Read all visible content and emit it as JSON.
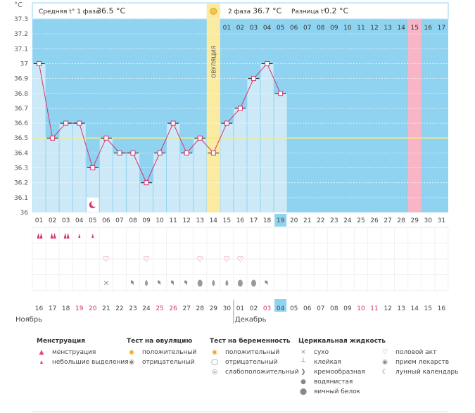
{
  "header": {
    "unit": "°C",
    "phase1_label": "Средняя t° 1 фаза",
    "phase1_value": "36.5 °C",
    "phase2_label": "2 фаза",
    "phase2_value": "36.7 °C",
    "diff_label": "Разница t°",
    "diff_value": "0.2 °C",
    "ovulation_label": "ОВУЛЯЦИЯ"
  },
  "chart_data": {
    "type": "line",
    "ylim": [
      36,
      37.3
    ],
    "yticks": [
      "37.3",
      "37.2",
      "37.1",
      "37",
      "36.9",
      "36.8",
      "36.7",
      "36.6",
      "36.5",
      "36.4",
      "36.3",
      "36.2",
      "36.1",
      "36"
    ],
    "cycle_days": [
      "01",
      "02",
      "03",
      "04",
      "05",
      "06",
      "07",
      "08",
      "09",
      "10",
      "11",
      "12",
      "13",
      "14",
      "15",
      "16",
      "17",
      "18",
      "19",
      "20",
      "21",
      "22",
      "23",
      "24",
      "25",
      "26",
      "27",
      "28",
      "29",
      "30",
      "31"
    ],
    "phase2_days": [
      "01",
      "02",
      "03",
      "04",
      "05",
      "06",
      "07",
      "08",
      "09",
      "10",
      "11",
      "12",
      "13",
      "14",
      "15",
      "16",
      "17"
    ],
    "calendar_dates": [
      "16",
      "17",
      "18",
      "19",
      "20",
      "21",
      "22",
      "23",
      "24",
      "25",
      "26",
      "27",
      "28",
      "29",
      "30",
      "01",
      "02",
      "03",
      "04",
      "05",
      "06",
      "07",
      "08",
      "09",
      "10",
      "11",
      "12",
      "13",
      "14",
      "15",
      "16"
    ],
    "red_dates_index": [
      3,
      4,
      9,
      10,
      17,
      24,
      25
    ],
    "month_left": "Ноябрь",
    "month_right": "Декабрь",
    "highlight_cycle_day": "19",
    "highlight_date": "04",
    "ovulation_day_index": 13,
    "expected_period_index": 28,
    "coverline": 36.5,
    "series": [
      {
        "values": [
          37.0,
          36.5,
          36.6,
          36.6,
          36.3,
          36.5,
          36.4,
          36.4,
          36.2,
          36.4,
          36.6,
          36.4,
          36.5,
          36.4,
          36.6,
          36.7,
          36.9,
          37.0,
          36.8
        ]
      }
    ]
  },
  "rows": {
    "menstruation": [
      "heavy",
      "heavy",
      "heavy",
      "light",
      "light"
    ],
    "sex_days": [
      5,
      8,
      12,
      14,
      15
    ],
    "fluid": {
      "10": "dry",
      "12": "creamy",
      "13": "watery",
      "14": "creamy",
      "15": "creamy",
      "16": "creamy",
      "17": "eggwhite",
      "18": "watery",
      "19": "watery",
      "20": "eggwhite",
      "21": "eggwhite",
      "22": "creamy"
    }
  },
  "legend": {
    "menstr": {
      "title": "Менструация",
      "items": [
        "менструация",
        "небольшие выделения"
      ]
    },
    "ovtest": {
      "title": "Тест на овуляцию",
      "items": [
        "положительный",
        "отрицательный"
      ]
    },
    "pregtest": {
      "title": "Тест на беременность",
      "items": [
        "положительный",
        "отрицательный",
        "слабоположительный"
      ]
    },
    "fluid": {
      "title": "Церикальная жидкость",
      "items": [
        "сухо",
        "клейкая",
        "кремообразная",
        "водянистая",
        "яичный белок"
      ]
    },
    "misc": {
      "items": [
        "половой акт",
        "прием лекарств",
        "лунный календарь"
      ]
    }
  },
  "colors": {
    "bg_blue": "#8fd3f0",
    "bar_blue": "#cde9f8",
    "ovulation": "#fbeba0",
    "period": "#f7b5c6",
    "line": "#d6336c",
    "coverline": "#eeee88"
  }
}
